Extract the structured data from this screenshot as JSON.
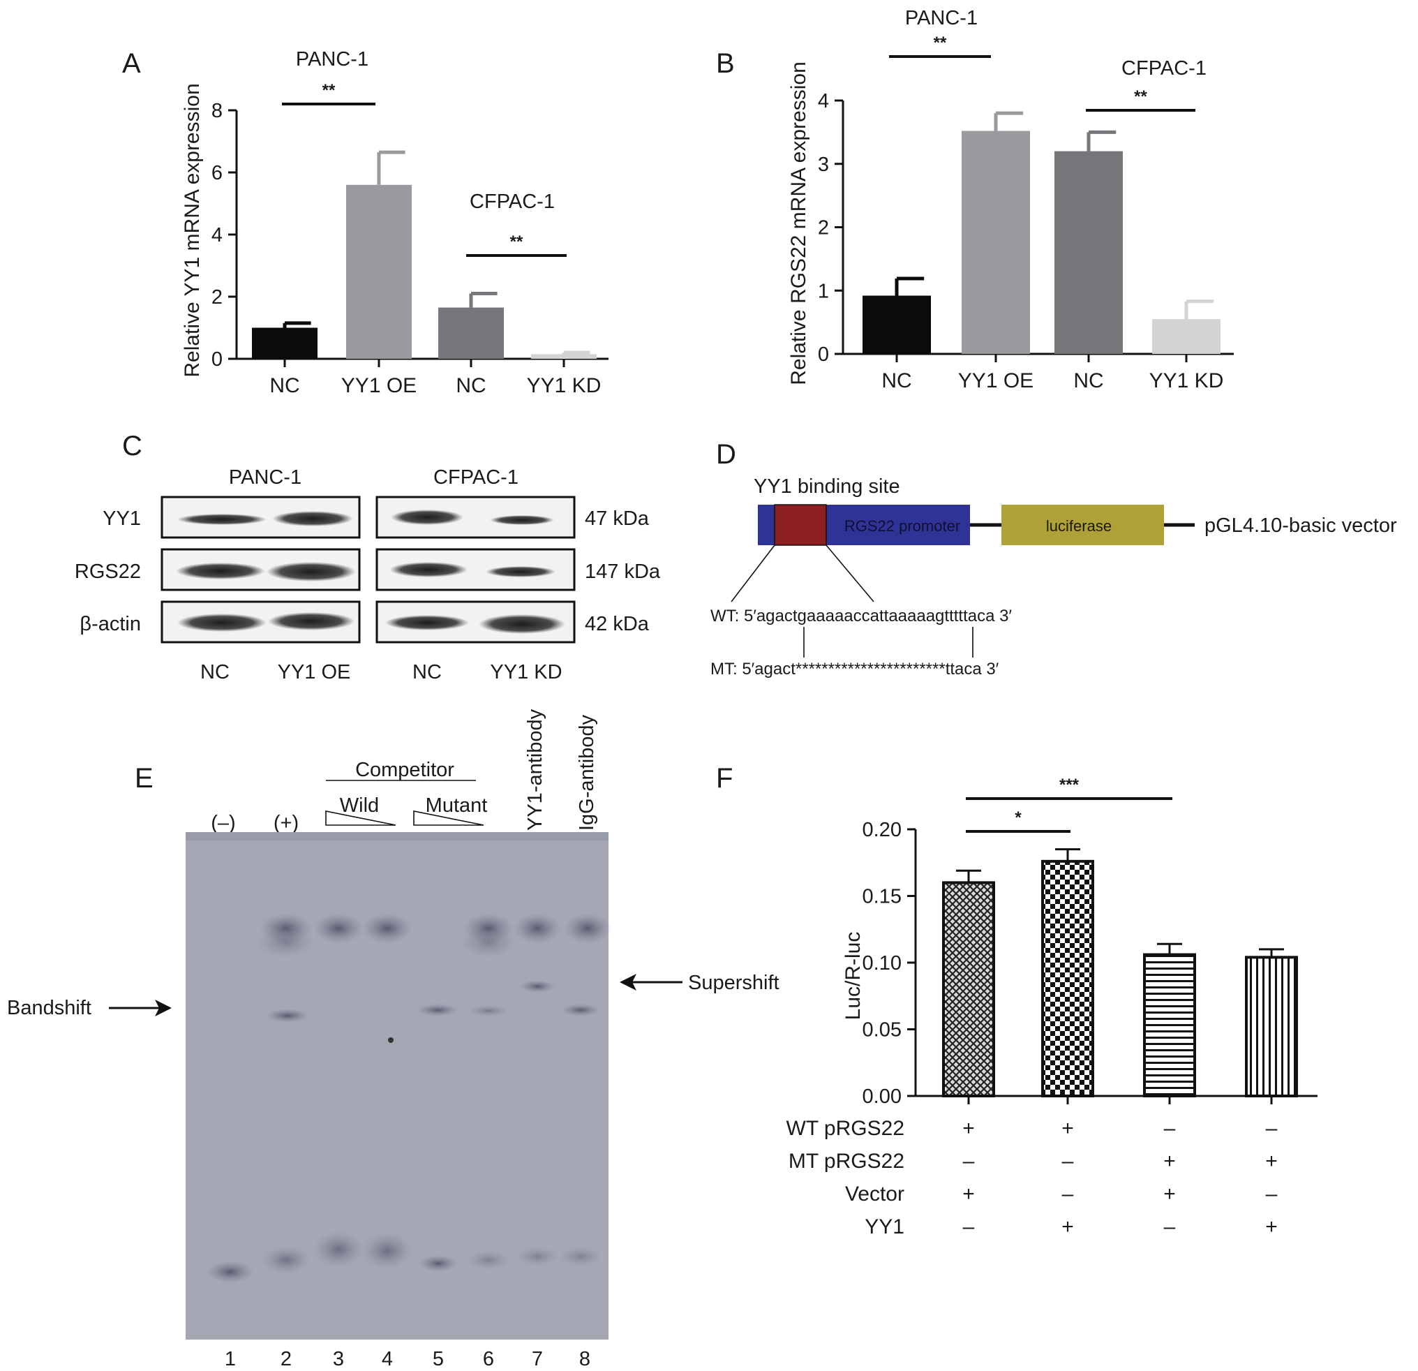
{
  "panels": {
    "A": {
      "letter": "A",
      "chart_data": {
        "type": "bar",
        "ylabel": "Relative YY1 mRNA expression",
        "ylim": [
          0,
          8
        ],
        "yticks": [
          "0",
          "2",
          "4",
          "6",
          "8"
        ],
        "categories": [
          "NC",
          "YY1 OE",
          "NC",
          "YY1 KD"
        ],
        "values": [
          1.0,
          5.6,
          1.65,
          0.15
        ],
        "errors": [
          0.15,
          1.05,
          0.45,
          0.05
        ],
        "colors": [
          "#0d0a0b",
          "#9a999e",
          "#77777b",
          "#d4d4d4"
        ],
        "groups": [
          {
            "label": "PANC-1",
            "sig": "**",
            "bars": [
              0,
              1
            ]
          },
          {
            "label": "CFPAC-1",
            "sig": "**",
            "bars": [
              2,
              3
            ]
          }
        ]
      }
    },
    "B": {
      "letter": "B",
      "chart_data": {
        "type": "bar",
        "ylabel": "Relative RGS22 mRNA expression",
        "ylim": [
          0,
          4
        ],
        "yticks": [
          "0",
          "1",
          "2",
          "3",
          "4"
        ],
        "categories": [
          "NC",
          "YY1 OE",
          "NC",
          "YY1 KD"
        ],
        "values": [
          0.92,
          3.52,
          3.2,
          0.55
        ],
        "errors": [
          0.27,
          0.28,
          0.3,
          0.28
        ],
        "colors": [
          "#0d0a0b",
          "#9a999e",
          "#77777b",
          "#d4d4d4"
        ],
        "groups": [
          {
            "label": "PANC-1",
            "sig": "**",
            "bars": [
              0,
              1
            ]
          },
          {
            "label": "CFPAC-1",
            "sig": "**",
            "bars": [
              2,
              3
            ]
          }
        ]
      }
    },
    "C": {
      "letter": "C",
      "cell_lines": [
        "PANC-1",
        "CFPAC-1"
      ],
      "rows": [
        {
          "protein": "YY1",
          "size": "47 kDa"
        },
        {
          "protein": "RGS22",
          "size": "147 kDa"
        },
        {
          "protein": "β-actin",
          "size": "42 kDa"
        }
      ],
      "lanes": [
        "NC",
        "YY1 OE",
        "NC",
        "YY1 KD"
      ]
    },
    "D": {
      "letter": "D",
      "binding_site_label": "YY1 binding site",
      "promoter_label": "RGS22 promoter",
      "luciferase_label": "luciferase",
      "vector_label": "pGL4.10-basic vector",
      "wt_seq": "WT: 5′agactgaaaaaccattaaaaagtttttaca 3′",
      "mt_seq": "MT: 5′agact***********************ttaca 3′",
      "colors": {
        "promoter": "#2f3396",
        "site": "#8c2020",
        "luciferase": "#aea137"
      }
    },
    "E": {
      "letter": "E",
      "competitor_label": "Competitor",
      "wild_label": "Wild",
      "mutant_label": "Mutant",
      "neg_label": "(–)",
      "pos_label": "(+)",
      "yy1_antibody_label": "YY1-antibody",
      "igg_antibody_label": "IgG-antibody",
      "bandshift_label": "Bandshift",
      "supershift_label": "Supershift",
      "lane_numbers": [
        "1",
        "2",
        "3",
        "4",
        "5",
        "6",
        "7",
        "8"
      ]
    },
    "F": {
      "letter": "F",
      "chart_data": {
        "type": "bar",
        "ylabel": "Luc/R-luc",
        "ylim": [
          0,
          0.2
        ],
        "yticks": [
          "0.00",
          "0.05",
          "0.10",
          "0.15",
          "0.20"
        ],
        "values": [
          0.16,
          0.176,
          0.106,
          0.104
        ],
        "errors": [
          0.009,
          0.009,
          0.008,
          0.006
        ],
        "patterns": [
          "crosshatch",
          "checker",
          "horizontal",
          "vertical"
        ],
        "significance": [
          {
            "from": 0,
            "to": 1,
            "label": "*"
          },
          {
            "from": 0,
            "to": 2,
            "label": "***"
          }
        ]
      },
      "conditions": [
        {
          "label": "WT pRGS22",
          "values": [
            "+",
            "+",
            "–",
            "–"
          ]
        },
        {
          "label": "MT pRGS22",
          "values": [
            "–",
            "–",
            "+",
            "+"
          ]
        },
        {
          "label": "Vector",
          "values": [
            "+",
            "–",
            "+",
            "–"
          ]
        },
        {
          "label": "YY1",
          "values": [
            "–",
            "+",
            "–",
            "+"
          ]
        }
      ]
    }
  }
}
